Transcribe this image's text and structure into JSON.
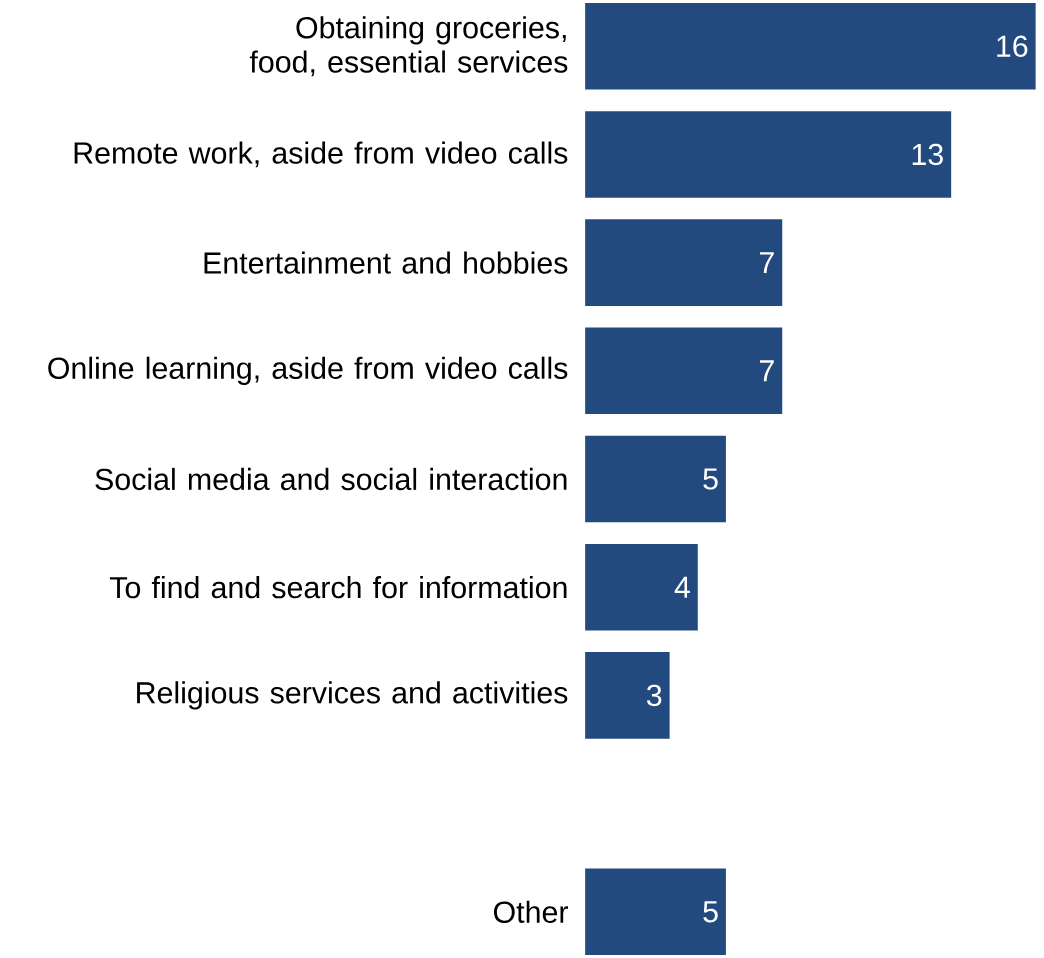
{
  "chart_data": {
    "type": "bar",
    "orientation": "horizontal",
    "data_labels": true,
    "color": "#234a7e",
    "categories": [
      "Obtaining groceries, food, essential services",
      "Remote work, aside from video calls",
      "Entertainment and hobbies",
      "Online learning, aside from video calls",
      "Social media and social interaction",
      "To find and search for information",
      "Religious services and activities",
      null,
      "Other"
    ],
    "values": [
      16,
      13,
      7,
      7,
      5,
      4,
      3,
      null,
      5
    ]
  }
}
